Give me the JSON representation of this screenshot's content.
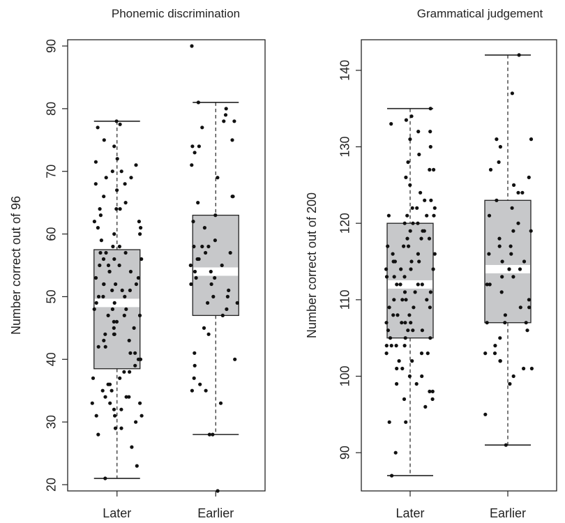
{
  "colors": {
    "box_fill": "#c7c8ca",
    "median": "#ffffff",
    "point": "#111111",
    "axis": "#222222"
  },
  "chart_data": [
    {
      "type": "box",
      "title": "Phonemic discrimination",
      "xlabel": "",
      "ylabel": "Number correct out of 96",
      "ylim": [
        19,
        91
      ],
      "yticks": [
        "20",
        "30",
        "40",
        "50",
        "60",
        "70",
        "80",
        "90"
      ],
      "categories": [
        "Later",
        "Earlier"
      ],
      "series": [
        {
          "label": "Later",
          "min": 21,
          "q1": 38.5,
          "median": 49,
          "q3": 57.5,
          "max": 78,
          "points": [
            78,
            77.5,
            77,
            75,
            74,
            72,
            71.5,
            71,
            70,
            70,
            69,
            69,
            68,
            68,
            67,
            66,
            65,
            64,
            64,
            64,
            63,
            62,
            62,
            61,
            61,
            60,
            60,
            59,
            58,
            58,
            57,
            57,
            57,
            56,
            56,
            56,
            55,
            55,
            55,
            54,
            54,
            54,
            53,
            53,
            52,
            52,
            52,
            52,
            51,
            51,
            51,
            50,
            50,
            50,
            49,
            49,
            48,
            48,
            48,
            47,
            47,
            47,
            46,
            46,
            45,
            45,
            44,
            44,
            44,
            43,
            43,
            42,
            42,
            41,
            41,
            40,
            40,
            39,
            38,
            38,
            37,
            37,
            36,
            36,
            35,
            35,
            34,
            34,
            34,
            33,
            33,
            33,
            32,
            32,
            31,
            31,
            31,
            30,
            29,
            29,
            28,
            26,
            23,
            21
          ]
        },
        {
          "label": "Earlier",
          "min": 28,
          "q1": 47,
          "median": 54,
          "q3": 63,
          "max": 81,
          "points": [
            90,
            81,
            80,
            79,
            78,
            78,
            77,
            75,
            74,
            74,
            73,
            71,
            69,
            66,
            66,
            65,
            63,
            62,
            61,
            59,
            58,
            58,
            58,
            57,
            57,
            56,
            56,
            55,
            55,
            54,
            54,
            53,
            53,
            52,
            52,
            51,
            50,
            50,
            49,
            49,
            48,
            47,
            45,
            44,
            41,
            40,
            39,
            37,
            36,
            35,
            35,
            33,
            28,
            28,
            19
          ]
        }
      ]
    },
    {
      "type": "box",
      "title": "Grammatical judgement",
      "xlabel": "",
      "ylabel": "Number correct out of 200",
      "ylim": [
        85,
        144
      ],
      "yticks": [
        "90",
        "100",
        "110",
        "120",
        "130",
        "140"
      ],
      "categories": [
        "Later",
        "Earlier"
      ],
      "series": [
        {
          "label": "Later",
          "min": 87,
          "q1": 105,
          "median": 112,
          "q3": 120,
          "max": 135,
          "points": [
            135,
            134,
            133.5,
            133,
            132,
            132,
            131,
            130,
            129,
            128,
            127,
            127,
            126,
            125,
            124,
            123,
            123,
            122,
            122,
            122,
            121,
            121,
            121,
            121,
            120,
            120,
            120,
            119,
            119,
            119,
            118,
            118,
            118,
            117,
            117,
            117,
            116,
            116,
            116,
            115,
            115,
            115,
            115,
            114,
            114,
            114,
            114,
            113,
            113,
            113,
            112,
            112,
            112,
            112,
            111,
            111,
            111,
            110,
            110,
            110,
            110,
            109,
            109,
            109,
            108,
            108,
            108,
            107,
            107,
            107,
            107,
            106,
            106,
            106,
            106,
            105,
            105,
            105,
            104,
            104,
            104,
            104,
            103,
            103,
            103,
            102,
            102,
            101,
            101,
            100,
            100,
            99,
            99,
            98,
            98,
            97,
            97,
            96,
            94,
            94,
            90,
            87
          ]
        },
        {
          "label": "Earlier",
          "min": 91,
          "q1": 107,
          "median": 114,
          "q3": 123,
          "max": 142,
          "points": [
            142,
            137,
            131,
            131,
            130,
            128,
            127,
            126,
            125,
            124,
            124,
            123,
            122,
            121,
            120,
            119,
            119,
            118,
            117,
            117,
            116,
            116,
            115,
            115,
            114,
            114,
            114,
            113,
            113,
            112,
            112,
            111,
            110,
            109,
            109,
            108,
            107,
            107,
            107,
            106,
            105,
            104,
            103,
            103,
            102,
            102,
            101,
            101,
            100,
            99,
            95,
            91
          ]
        }
      ]
    }
  ]
}
